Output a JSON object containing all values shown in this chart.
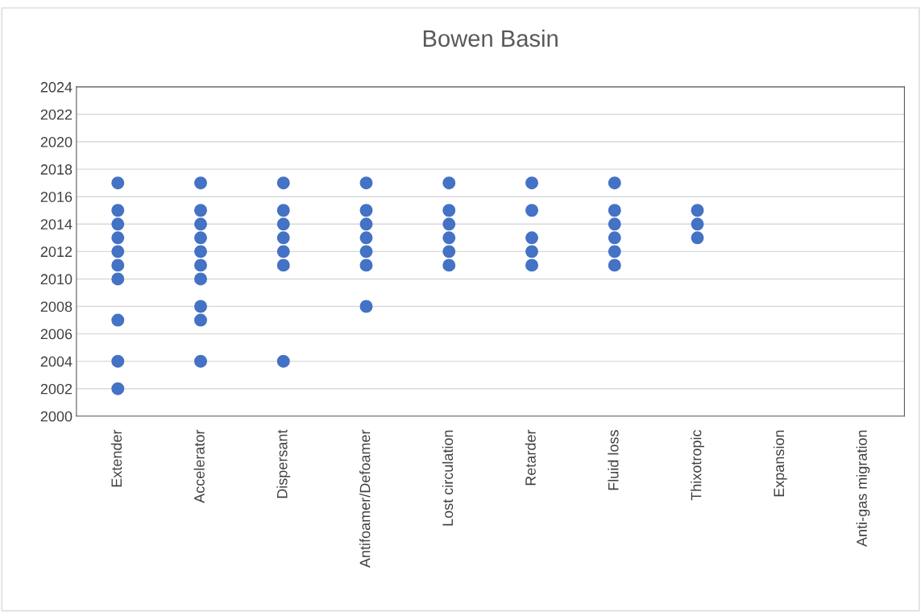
{
  "chart_data": {
    "type": "scatter",
    "title": "Bowen Basin",
    "categories": [
      "Extender",
      "Accelerator",
      "Dispersant",
      "Antifoamer/Defoamer",
      "Lost circulation",
      "Retarder",
      "Fluid loss",
      "Thixotropic",
      "Expansion",
      "Anti-gas migration"
    ],
    "series": [
      {
        "color": "#4472c4",
        "x": [
          "Extender",
          "Extender",
          "Extender",
          "Extender",
          "Extender",
          "Extender",
          "Extender",
          "Extender",
          "Extender",
          "Extender",
          "Accelerator",
          "Accelerator",
          "Accelerator",
          "Accelerator",
          "Accelerator",
          "Accelerator",
          "Accelerator",
          "Accelerator",
          "Accelerator",
          "Accelerator",
          "Dispersant",
          "Dispersant",
          "Dispersant",
          "Dispersant",
          "Dispersant",
          "Dispersant",
          "Dispersant",
          "Antifoamer/Defoamer",
          "Antifoamer/Defoamer",
          "Antifoamer/Defoamer",
          "Antifoamer/Defoamer",
          "Antifoamer/Defoamer",
          "Antifoamer/Defoamer",
          "Antifoamer/Defoamer",
          "Lost circulation",
          "Lost circulation",
          "Lost circulation",
          "Lost circulation",
          "Lost circulation",
          "Lost circulation",
          "Retarder",
          "Retarder",
          "Retarder",
          "Retarder",
          "Retarder",
          "Fluid loss",
          "Fluid loss",
          "Fluid loss",
          "Fluid loss",
          "Fluid loss",
          "Fluid loss",
          "Thixotropic",
          "Thixotropic",
          "Thixotropic"
        ],
        "values": [
          2017,
          2015,
          2014,
          2013,
          2012,
          2011,
          2010,
          2007,
          2004,
          2002,
          2017,
          2015,
          2014,
          2013,
          2012,
          2011,
          2010,
          2008,
          2007,
          2004,
          2017,
          2015,
          2014,
          2013,
          2012,
          2011,
          2004,
          2017,
          2015,
          2014,
          2013,
          2012,
          2011,
          2008,
          2017,
          2015,
          2014,
          2013,
          2012,
          2011,
          2017,
          2015,
          2013,
          2012,
          2011,
          2017,
          2015,
          2014,
          2013,
          2012,
          2011,
          2015,
          2014,
          2013
        ]
      }
    ],
    "ylim": [
      2000,
      2024
    ],
    "yticks": [
      2000,
      2002,
      2004,
      2006,
      2008,
      2010,
      2012,
      2014,
      2016,
      2018,
      2020,
      2022,
      2024
    ],
    "grid": "y",
    "marker": "circle"
  }
}
